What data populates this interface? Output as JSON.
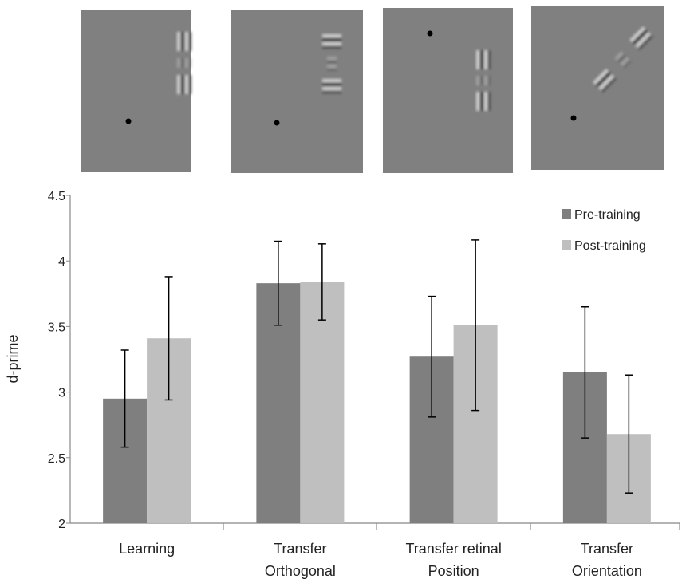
{
  "chart_data": {
    "type": "bar",
    "categories": [
      [
        "Learning"
      ],
      [
        "Transfer",
        "Orthogonal"
      ],
      [
        "Transfer retinal",
        "Position"
      ],
      [
        "Transfer",
        "Orientation"
      ]
    ],
    "series": [
      {
        "name": "Pre-training",
        "color": "#7f7f7f",
        "values": [
          2.95,
          3.83,
          3.27,
          3.15
        ],
        "errors": [
          0.37,
          0.32,
          0.46,
          0.5
        ]
      },
      {
        "name": "Post-training",
        "color": "#bfbfbf",
        "values": [
          3.41,
          3.84,
          3.51,
          2.68
        ],
        "errors": [
          0.47,
          0.29,
          0.65,
          0.45
        ]
      }
    ],
    "y_label": "d-prime",
    "ylim": [
      2,
      4.5
    ],
    "yticks": [
      2,
      2.5,
      3,
      3.5,
      4,
      4.5
    ],
    "grid": false,
    "legend": "top-right"
  }
}
